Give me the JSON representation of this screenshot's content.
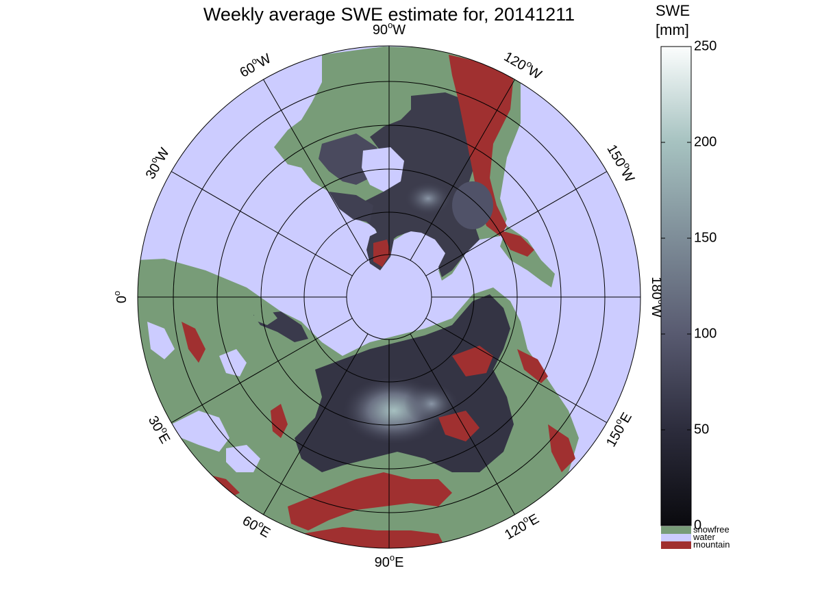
{
  "title": "Weekly average SWE estimate for, 20141211",
  "colorbar": {
    "title_line1": "SWE",
    "title_line2": "[mm]",
    "ticks": [
      "0",
      "50",
      "100",
      "150",
      "200",
      "250"
    ],
    "range": [
      0,
      250
    ],
    "gradient_colors": [
      "#0a0a0e",
      "#2c2c3c",
      "#585a70",
      "#7e8d98",
      "#a6c2c0",
      "#fbfdfd"
    ],
    "categories": [
      {
        "label": "snowfree",
        "color": "#789c78"
      },
      {
        "label": "water",
        "color": "#ccccff"
      },
      {
        "label": "mountain",
        "color": "#a03030"
      }
    ]
  },
  "map": {
    "projection": "north polar stereographic",
    "background_color": "#ccccff",
    "longitude_labels": [
      {
        "deg": "90",
        "hem": "W",
        "lon": -90
      },
      {
        "deg": "120",
        "hem": "W",
        "lon": -120
      },
      {
        "deg": "150",
        "hem": "W",
        "lon": -150
      },
      {
        "deg": "180",
        "hem": "W",
        "lon": 180
      },
      {
        "deg": "150",
        "hem": "E",
        "lon": 150
      },
      {
        "deg": "120",
        "hem": "E",
        "lon": 120
      },
      {
        "deg": "90",
        "hem": "E",
        "lon": 90
      },
      {
        "deg": "60",
        "hem": "E",
        "lon": 60
      },
      {
        "deg": "30",
        "hem": "E",
        "lon": 30
      },
      {
        "deg": "0",
        "hem": "",
        "lon": 0
      },
      {
        "deg": "30",
        "hem": "W",
        "lon": -30
      },
      {
        "deg": "60",
        "hem": "W",
        "lon": -60
      }
    ]
  }
}
